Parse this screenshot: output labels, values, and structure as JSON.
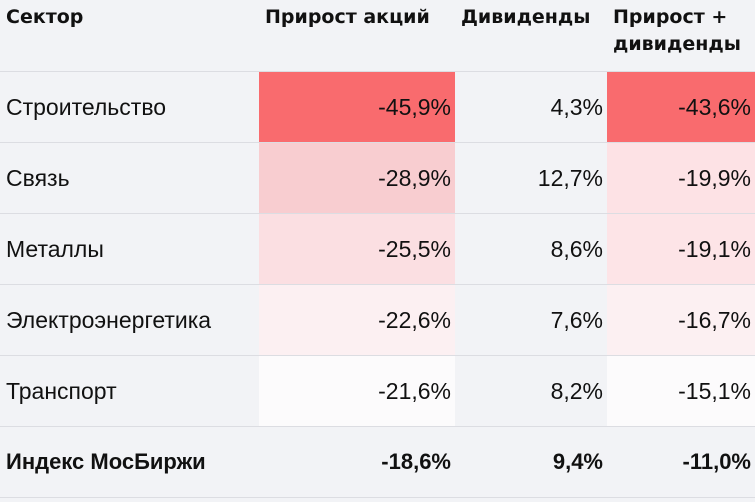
{
  "headers": {
    "sector": "Сектор",
    "growth": "Прирост акций",
    "dividends": "Дивиденды",
    "total_line1": "Прирост +",
    "total_line2": "дивиденды"
  },
  "rows": [
    {
      "sector": "Строительство",
      "growth": "-45,9%",
      "dividends": "4,3%",
      "total": "-43,6%",
      "growth_color": "#f96b6e",
      "total_color": "#f96b6e"
    },
    {
      "sector": "Связь",
      "growth": "-28,9%",
      "dividends": "12,7%",
      "total": "-19,9%",
      "growth_color": "#f8cdd0",
      "total_color": "#fde2e5"
    },
    {
      "sector": "Металлы",
      "growth": "-25,5%",
      "dividends": "8,6%",
      "total": "-19,1%",
      "growth_color": "#fbdfe2",
      "total_color": "#fde4e7"
    },
    {
      "sector": "Электроэнергетика",
      "growth": "-22,6%",
      "dividends": "7,6%",
      "total": "-16,7%",
      "growth_color": "#fcf0f2",
      "total_color": "#fcf0f2"
    },
    {
      "sector": "Транспорт",
      "growth": "-21,6%",
      "dividends": "8,2%",
      "total": "-15,1%",
      "growth_color": "#fcfbfc",
      "total_color": "#fcfbfc"
    }
  ],
  "total_row": {
    "sector": "Индекс МосБиржи",
    "growth": "-18,6%",
    "dividends": "9,4%",
    "total": "-11,0%"
  }
}
